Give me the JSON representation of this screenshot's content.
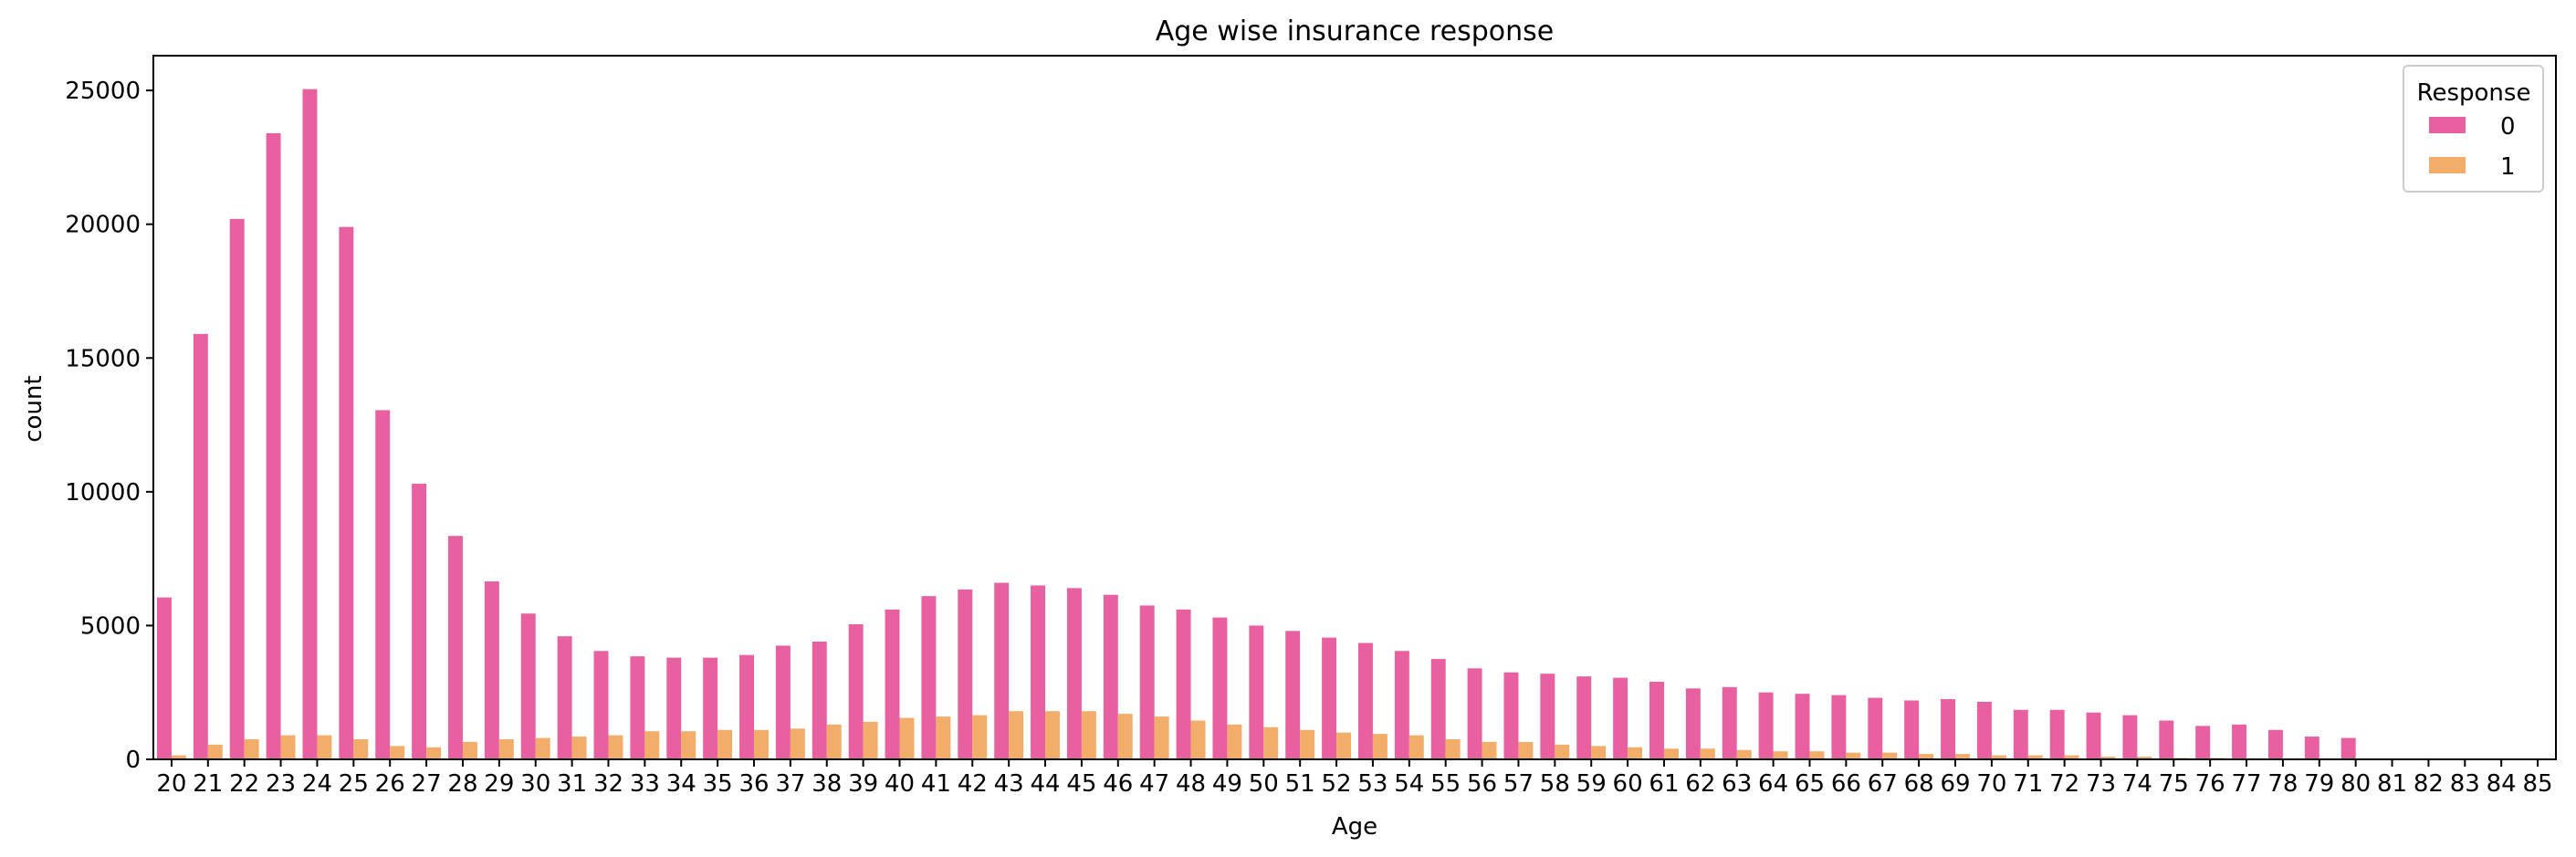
{
  "chart_data": {
    "type": "bar",
    "title": "Age wise insurance response",
    "xlabel": "Age",
    "ylabel": "count",
    "ylim": [
      0,
      26300
    ],
    "yticks": [
      0,
      5000,
      10000,
      15000,
      20000,
      25000
    ],
    "grid": false,
    "legend": {
      "title": "Response",
      "position": "top-right"
    },
    "categories": [
      "20",
      "21",
      "22",
      "23",
      "24",
      "25",
      "26",
      "27",
      "28",
      "29",
      "30",
      "31",
      "32",
      "33",
      "34",
      "35",
      "36",
      "37",
      "38",
      "39",
      "40",
      "41",
      "42",
      "43",
      "44",
      "45",
      "46",
      "47",
      "48",
      "49",
      "50",
      "51",
      "52",
      "53",
      "54",
      "55",
      "56",
      "57",
      "58",
      "59",
      "60",
      "61",
      "62",
      "63",
      "64",
      "65",
      "66",
      "67",
      "68",
      "69",
      "70",
      "71",
      "72",
      "73",
      "74",
      "75",
      "76",
      "77",
      "78",
      "79",
      "80",
      "81",
      "82",
      "83",
      "84",
      "85"
    ],
    "series": [
      {
        "name": "0",
        "color": "#e8609f",
        "values": [
          6050,
          15900,
          20200,
          23400,
          25050,
          19900,
          13050,
          10300,
          8350,
          6650,
          5450,
          4600,
          4050,
          3850,
          3800,
          3800,
          3900,
          4250,
          4400,
          5050,
          5600,
          6100,
          6350,
          6600,
          6500,
          6400,
          6150,
          5750,
          5600,
          5300,
          5000,
          4800,
          4550,
          4350,
          4050,
          3750,
          3400,
          3250,
          3200,
          3100,
          3050,
          2900,
          2650,
          2700,
          2500,
          2450,
          2400,
          2300,
          2200,
          2250,
          2150,
          1850,
          1850,
          1750,
          1650,
          1450,
          1250,
          1300,
          1100,
          850,
          800,
          0,
          0,
          0,
          0,
          0
        ]
      },
      {
        "name": "1",
        "color": "#f2ad6b",
        "values": [
          150,
          550,
          750,
          900,
          900,
          750,
          500,
          450,
          650,
          750,
          800,
          850,
          900,
          1050,
          1050,
          1100,
          1100,
          1150,
          1300,
          1400,
          1550,
          1600,
          1650,
          1800,
          1800,
          1800,
          1700,
          1600,
          1450,
          1300,
          1200,
          1100,
          1000,
          950,
          900,
          750,
          650,
          650,
          550,
          500,
          450,
          400,
          400,
          350,
          300,
          300,
          250,
          250,
          200,
          200,
          150,
          150,
          150,
          100,
          100,
          50,
          50,
          0,
          0,
          0,
          0,
          0,
          0,
          0,
          0,
          0
        ]
      }
    ]
  }
}
